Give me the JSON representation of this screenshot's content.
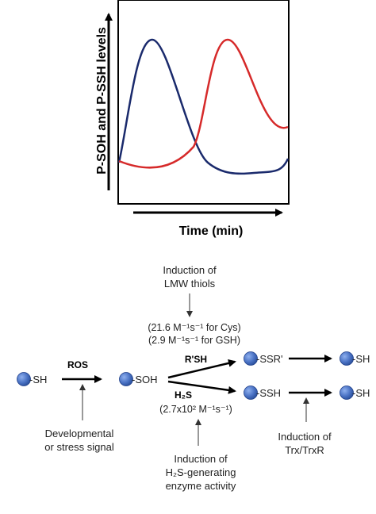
{
  "plot": {
    "y_axis_label": "P-SOH and P-SSH levels",
    "x_axis_label": "Time (min)",
    "colors": {
      "blue_curve": "#1a2a6c",
      "red_curve": "#d62a2a"
    }
  },
  "scheme": {
    "start_label": "-SH",
    "ros_label": "ROS",
    "dev_signal": [
      "Developmental",
      "or stress signal"
    ],
    "soh_label": "-SOH",
    "induction_lmw": [
      "Induction of",
      "LMW thiols"
    ],
    "rate_cys": "(21.6 M⁻¹s⁻¹ for Cys)",
    "rate_gsh": "(2.9 M⁻¹s⁻¹ for GSH)",
    "rsh_label": "R'SH",
    "h2s_label": "H₂S",
    "rate_h2s": "(2.7x10² M⁻¹s⁻¹)",
    "induction_h2s": [
      "Induction of",
      "H₂S-generating",
      "enzyme activity"
    ],
    "ssr_label": "-SSR'",
    "ssh_label": "-SSH",
    "sh_top_label": "-SH",
    "sh_bottom_label": "-SH",
    "induction_trx": [
      "Induction of",
      "Trx/TrxR"
    ],
    "colors": {
      "sphere": "#4a72c4",
      "sphere_stroke": "#1f3f8a"
    }
  }
}
